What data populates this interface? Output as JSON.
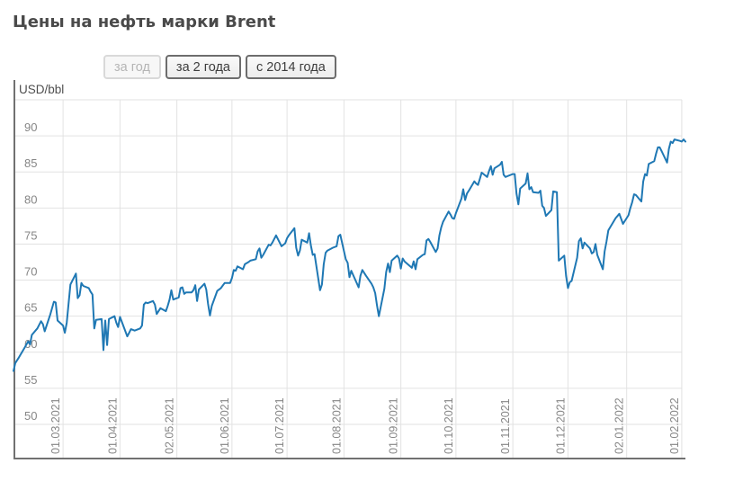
{
  "page": {
    "title": "Цены на нефть марки Brent"
  },
  "controls": {
    "period_buttons": [
      {
        "label": "за год",
        "disabled": true
      },
      {
        "label": "за 2 года",
        "disabled": false
      },
      {
        "label": "с 2014 года",
        "disabled": false
      }
    ]
  },
  "colors": {
    "line": "#1f78b4",
    "grid": "#e2e2e2",
    "axis": "#717171",
    "tick_text": "#868686",
    "title_text": "#4a4a4a"
  },
  "chart_data": {
    "type": "line",
    "title": "Цены на нефть марки Brent",
    "unit_label": "USD/bbl",
    "xlabel": "",
    "ylabel": "USD/bbl",
    "grid": true,
    "legend": "none",
    "ylim": [
      50,
      95
    ],
    "y_ticks": [
      50,
      55,
      60,
      65,
      70,
      75,
      80,
      85,
      90
    ],
    "x_domain": [
      "2021-02-02",
      "2022-02-03"
    ],
    "x_ticks": [
      {
        "date": "2021-03-01",
        "label": "01.03.2021"
      },
      {
        "date": "2021-04-01",
        "label": "01.04.2021"
      },
      {
        "date": "2021-05-02",
        "label": "02.05.2021"
      },
      {
        "date": "2021-06-01",
        "label": "01.06.2021"
      },
      {
        "date": "2021-07-01",
        "label": "01.07.2021"
      },
      {
        "date": "2021-08-01",
        "label": "01.08.2021"
      },
      {
        "date": "2021-09-01",
        "label": "01.09.2021"
      },
      {
        "date": "2021-10-01",
        "label": "01.10.2021"
      },
      {
        "date": "2021-11-01",
        "label": "01.11.2021"
      },
      {
        "date": "2021-12-01",
        "label": "01.12.2021"
      },
      {
        "date": "2022-01-02",
        "label": "02.01.2022"
      },
      {
        "date": "2022-02-01",
        "label": "01.02.2022"
      }
    ],
    "series": [
      {
        "name": "Brent",
        "points": [
          [
            "2021-02-02",
            57.4
          ],
          [
            "2021-02-03",
            58.5
          ],
          [
            "2021-02-05",
            59.3
          ],
          [
            "2021-02-08",
            60.6
          ],
          [
            "2021-02-10",
            61.5
          ],
          [
            "2021-02-11",
            61.1
          ],
          [
            "2021-02-12",
            62.4
          ],
          [
            "2021-02-15",
            63.3
          ],
          [
            "2021-02-17",
            64.3
          ],
          [
            "2021-02-18",
            63.9
          ],
          [
            "2021-02-19",
            62.9
          ],
          [
            "2021-02-22",
            65.2
          ],
          [
            "2021-02-24",
            67.0
          ],
          [
            "2021-02-25",
            66.9
          ],
          [
            "2021-02-26",
            64.4
          ],
          [
            "2021-03-01",
            63.7
          ],
          [
            "2021-03-02",
            62.7
          ],
          [
            "2021-03-03",
            64.1
          ],
          [
            "2021-03-04",
            66.7
          ],
          [
            "2021-03-05",
            69.4
          ],
          [
            "2021-03-08",
            70.9
          ],
          [
            "2021-03-09",
            67.5
          ],
          [
            "2021-03-10",
            67.9
          ],
          [
            "2021-03-11",
            69.6
          ],
          [
            "2021-03-12",
            69.2
          ],
          [
            "2021-03-15",
            68.9
          ],
          [
            "2021-03-16",
            68.4
          ],
          [
            "2021-03-17",
            68.0
          ],
          [
            "2021-03-18",
            63.3
          ],
          [
            "2021-03-19",
            64.5
          ],
          [
            "2021-03-22",
            64.6
          ],
          [
            "2021-03-23",
            60.3
          ],
          [
            "2021-03-24",
            64.4
          ],
          [
            "2021-03-25",
            61.0
          ],
          [
            "2021-03-26",
            64.6
          ],
          [
            "2021-03-29",
            65.0
          ],
          [
            "2021-03-30",
            64.1
          ],
          [
            "2021-03-31",
            63.5
          ],
          [
            "2021-04-01",
            64.9
          ],
          [
            "2021-04-05",
            62.2
          ],
          [
            "2021-04-06",
            62.7
          ],
          [
            "2021-04-07",
            63.2
          ],
          [
            "2021-04-09",
            63.0
          ],
          [
            "2021-04-12",
            63.3
          ],
          [
            "2021-04-13",
            63.7
          ],
          [
            "2021-04-14",
            66.6
          ],
          [
            "2021-04-15",
            66.9
          ],
          [
            "2021-04-16",
            66.8
          ],
          [
            "2021-04-19",
            67.1
          ],
          [
            "2021-04-20",
            66.6
          ],
          [
            "2021-04-21",
            65.3
          ],
          [
            "2021-04-23",
            66.1
          ],
          [
            "2021-04-26",
            65.7
          ],
          [
            "2021-04-27",
            66.4
          ],
          [
            "2021-04-28",
            67.3
          ],
          [
            "2021-04-29",
            68.6
          ],
          [
            "2021-04-30",
            67.3
          ],
          [
            "2021-05-03",
            67.6
          ],
          [
            "2021-05-04",
            68.9
          ],
          [
            "2021-05-05",
            69.0
          ],
          [
            "2021-05-06",
            68.1
          ],
          [
            "2021-05-07",
            68.3
          ],
          [
            "2021-05-10",
            68.3
          ],
          [
            "2021-05-11",
            68.6
          ],
          [
            "2021-05-12",
            69.3
          ],
          [
            "2021-05-13",
            67.1
          ],
          [
            "2021-05-14",
            68.7
          ],
          [
            "2021-05-17",
            69.5
          ],
          [
            "2021-05-18",
            68.7
          ],
          [
            "2021-05-19",
            66.7
          ],
          [
            "2021-05-20",
            65.1
          ],
          [
            "2021-05-21",
            66.4
          ],
          [
            "2021-05-24",
            68.5
          ],
          [
            "2021-05-26",
            68.9
          ],
          [
            "2021-05-28",
            69.6
          ],
          [
            "2021-05-31",
            69.6
          ],
          [
            "2021-06-01",
            70.3
          ],
          [
            "2021-06-02",
            71.4
          ],
          [
            "2021-06-03",
            71.3
          ],
          [
            "2021-06-04",
            71.9
          ],
          [
            "2021-06-07",
            71.5
          ],
          [
            "2021-06-08",
            72.2
          ],
          [
            "2021-06-10",
            72.5
          ],
          [
            "2021-06-11",
            72.7
          ],
          [
            "2021-06-14",
            72.9
          ],
          [
            "2021-06-15",
            74.0
          ],
          [
            "2021-06-16",
            74.4
          ],
          [
            "2021-06-17",
            73.1
          ],
          [
            "2021-06-18",
            73.5
          ],
          [
            "2021-06-21",
            74.9
          ],
          [
            "2021-06-22",
            74.8
          ],
          [
            "2021-06-23",
            75.2
          ],
          [
            "2021-06-25",
            76.2
          ],
          [
            "2021-06-28",
            74.7
          ],
          [
            "2021-06-30",
            75.1
          ],
          [
            "2021-07-01",
            75.8
          ],
          [
            "2021-07-02",
            76.2
          ],
          [
            "2021-07-05",
            77.2
          ],
          [
            "2021-07-06",
            74.5
          ],
          [
            "2021-07-07",
            73.4
          ],
          [
            "2021-07-08",
            74.1
          ],
          [
            "2021-07-09",
            75.6
          ],
          [
            "2021-07-12",
            75.2
          ],
          [
            "2021-07-13",
            76.5
          ],
          [
            "2021-07-14",
            74.8
          ],
          [
            "2021-07-15",
            73.5
          ],
          [
            "2021-07-16",
            73.6
          ],
          [
            "2021-07-19",
            68.6
          ],
          [
            "2021-07-20",
            69.4
          ],
          [
            "2021-07-21",
            72.2
          ],
          [
            "2021-07-22",
            73.8
          ],
          [
            "2021-07-23",
            74.1
          ],
          [
            "2021-07-26",
            74.5
          ],
          [
            "2021-07-28",
            74.7
          ],
          [
            "2021-07-29",
            76.1
          ],
          [
            "2021-07-30",
            76.3
          ],
          [
            "2021-08-02",
            72.9
          ],
          [
            "2021-08-03",
            72.4
          ],
          [
            "2021-08-04",
            70.4
          ],
          [
            "2021-08-05",
            71.3
          ],
          [
            "2021-08-06",
            70.7
          ],
          [
            "2021-08-09",
            69.0
          ],
          [
            "2021-08-10",
            70.6
          ],
          [
            "2021-08-11",
            71.4
          ],
          [
            "2021-08-13",
            70.6
          ],
          [
            "2021-08-16",
            69.5
          ],
          [
            "2021-08-17",
            69.0
          ],
          [
            "2021-08-18",
            68.2
          ],
          [
            "2021-08-19",
            66.5
          ],
          [
            "2021-08-20",
            65.0
          ],
          [
            "2021-08-23",
            68.8
          ],
          [
            "2021-08-24",
            71.1
          ],
          [
            "2021-08-25",
            72.3
          ],
          [
            "2021-08-26",
            71.1
          ],
          [
            "2021-08-27",
            72.7
          ],
          [
            "2021-08-30",
            73.4
          ],
          [
            "2021-08-31",
            73.0
          ],
          [
            "2021-09-01",
            71.6
          ],
          [
            "2021-09-02",
            73.0
          ],
          [
            "2021-09-03",
            72.6
          ],
          [
            "2021-09-07",
            71.7
          ],
          [
            "2021-09-08",
            72.6
          ],
          [
            "2021-09-09",
            71.5
          ],
          [
            "2021-09-10",
            72.9
          ],
          [
            "2021-09-13",
            73.5
          ],
          [
            "2021-09-14",
            73.6
          ],
          [
            "2021-09-15",
            75.5
          ],
          [
            "2021-09-16",
            75.7
          ],
          [
            "2021-09-17",
            75.3
          ],
          [
            "2021-09-20",
            73.9
          ],
          [
            "2021-09-21",
            74.4
          ],
          [
            "2021-09-22",
            76.2
          ],
          [
            "2021-09-23",
            77.3
          ],
          [
            "2021-09-24",
            78.1
          ],
          [
            "2021-09-27",
            79.5
          ],
          [
            "2021-09-28",
            79.1
          ],
          [
            "2021-09-29",
            78.6
          ],
          [
            "2021-09-30",
            78.5
          ],
          [
            "2021-10-01",
            79.3
          ],
          [
            "2021-10-04",
            81.3
          ],
          [
            "2021-10-05",
            82.6
          ],
          [
            "2021-10-06",
            81.1
          ],
          [
            "2021-10-07",
            82.0
          ],
          [
            "2021-10-08",
            82.4
          ],
          [
            "2021-10-11",
            83.7
          ],
          [
            "2021-10-12",
            83.4
          ],
          [
            "2021-10-13",
            83.2
          ],
          [
            "2021-10-14",
            84.0
          ],
          [
            "2021-10-15",
            84.9
          ],
          [
            "2021-10-18",
            84.3
          ],
          [
            "2021-10-19",
            85.1
          ],
          [
            "2021-10-20",
            85.8
          ],
          [
            "2021-10-21",
            84.6
          ],
          [
            "2021-10-22",
            85.5
          ],
          [
            "2021-10-25",
            86.0
          ],
          [
            "2021-10-26",
            86.4
          ],
          [
            "2021-10-27",
            84.6
          ],
          [
            "2021-10-28",
            84.3
          ],
          [
            "2021-10-29",
            84.4
          ],
          [
            "2021-11-01",
            84.7
          ],
          [
            "2021-11-02",
            84.7
          ],
          [
            "2021-11-03",
            82.0
          ],
          [
            "2021-11-04",
            80.5
          ],
          [
            "2021-11-05",
            82.7
          ],
          [
            "2021-11-08",
            83.4
          ],
          [
            "2021-11-09",
            84.8
          ],
          [
            "2021-11-10",
            82.6
          ],
          [
            "2021-11-11",
            82.9
          ],
          [
            "2021-11-12",
            82.2
          ],
          [
            "2021-11-15",
            82.1
          ],
          [
            "2021-11-16",
            82.4
          ],
          [
            "2021-11-17",
            80.3
          ],
          [
            "2021-11-18",
            80.0
          ],
          [
            "2021-11-19",
            78.9
          ],
          [
            "2021-11-22",
            79.7
          ],
          [
            "2021-11-23",
            82.3
          ],
          [
            "2021-11-25",
            82.2
          ],
          [
            "2021-11-26",
            72.7
          ],
          [
            "2021-11-29",
            73.4
          ],
          [
            "2021-11-30",
            70.6
          ],
          [
            "2021-12-01",
            68.9
          ],
          [
            "2021-12-02",
            69.7
          ],
          [
            "2021-12-03",
            69.9
          ],
          [
            "2021-12-06",
            73.1
          ],
          [
            "2021-12-07",
            75.4
          ],
          [
            "2021-12-08",
            75.8
          ],
          [
            "2021-12-09",
            74.4
          ],
          [
            "2021-12-10",
            75.2
          ],
          [
            "2021-12-13",
            74.4
          ],
          [
            "2021-12-14",
            73.7
          ],
          [
            "2021-12-15",
            73.9
          ],
          [
            "2021-12-16",
            75.0
          ],
          [
            "2021-12-17",
            73.5
          ],
          [
            "2021-12-20",
            71.5
          ],
          [
            "2021-12-21",
            74.0
          ],
          [
            "2021-12-22",
            75.3
          ],
          [
            "2021-12-23",
            76.9
          ],
          [
            "2021-12-27",
            78.6
          ],
          [
            "2021-12-28",
            78.9
          ],
          [
            "2021-12-29",
            79.2
          ],
          [
            "2021-12-31",
            77.8
          ],
          [
            "2022-01-03",
            79.0
          ],
          [
            "2022-01-04",
            80.0
          ],
          [
            "2022-01-05",
            80.8
          ],
          [
            "2022-01-06",
            81.9
          ],
          [
            "2022-01-07",
            81.8
          ],
          [
            "2022-01-10",
            80.9
          ],
          [
            "2022-01-11",
            83.7
          ],
          [
            "2022-01-12",
            84.7
          ],
          [
            "2022-01-13",
            84.5
          ],
          [
            "2022-01-14",
            86.1
          ],
          [
            "2022-01-17",
            86.5
          ],
          [
            "2022-01-18",
            87.5
          ],
          [
            "2022-01-19",
            88.4
          ],
          [
            "2022-01-20",
            88.4
          ],
          [
            "2022-01-21",
            87.9
          ],
          [
            "2022-01-24",
            86.3
          ],
          [
            "2022-01-25",
            88.2
          ],
          [
            "2022-01-26",
            89.2
          ],
          [
            "2022-01-27",
            89.0
          ],
          [
            "2022-01-28",
            89.5
          ],
          [
            "2022-01-31",
            89.3
          ],
          [
            "2022-02-01",
            89.2
          ],
          [
            "2022-02-02",
            89.5
          ],
          [
            "2022-02-03",
            89.2
          ]
        ]
      }
    ]
  }
}
